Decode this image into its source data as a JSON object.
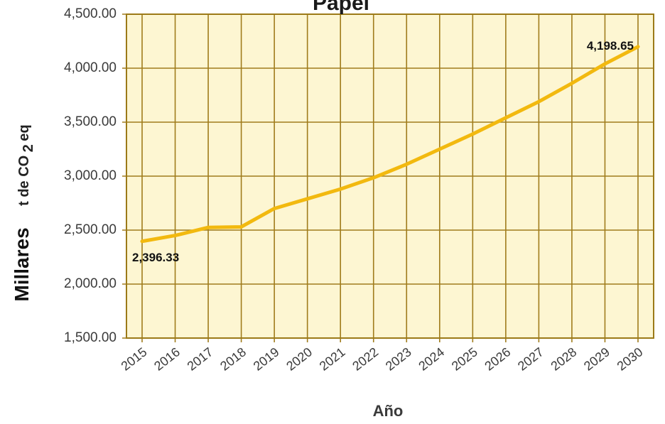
{
  "chart_data": {
    "type": "line",
    "title": "Papel",
    "xlabel": "Año",
    "ylabel_prefix": "Millares",
    "ylabel_unit": "t de CO",
    "ylabel_sub": "2",
    "ylabel_suffix": "eq",
    "ylim": [
      1500,
      4500
    ],
    "grid": true,
    "yticks": [
      "1,500.00",
      "2,000.00",
      "2,500.00",
      "3,000.00",
      "3,500.00",
      "4,000.00",
      "4,500.00"
    ],
    "ytick_values": [
      1500,
      2000,
      2500,
      3000,
      3500,
      4000,
      4500
    ],
    "x": [
      "2015",
      "2016",
      "2017",
      "2018",
      "2019",
      "2020",
      "2021",
      "2022",
      "2023",
      "2024",
      "2025",
      "2026",
      "2027",
      "2028",
      "2029",
      "2030"
    ],
    "series": [
      {
        "values": [
          2396.33,
          2450,
          2525,
          2530,
          2700,
          2790,
          2880,
          2985,
          3110,
          3250,
          3390,
          3540,
          3690,
          3860,
          4040,
          4198.65
        ]
      }
    ],
    "annotations": [
      {
        "index": 0,
        "text": "2,396.33"
      },
      {
        "index": 15,
        "text": "4,198.65"
      }
    ],
    "colors": {
      "line": "#f2b90f",
      "grid": "#a07c1c",
      "background": "#fdf6d2",
      "frame": "#9c7a18"
    }
  }
}
